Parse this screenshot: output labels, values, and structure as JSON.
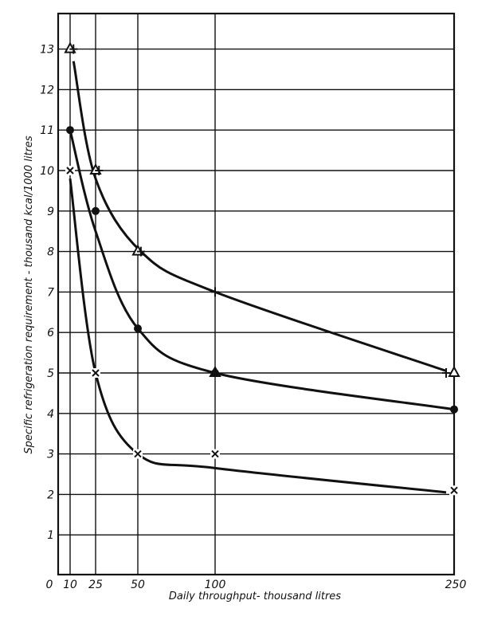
{
  "chart_data": {
    "type": "line",
    "title": "",
    "xlabel": "Daily throughput- thousand litres",
    "ylabel": "Specific refrigeration requirement - thousand kcal/1000 litres",
    "x_ticks": [
      "0",
      "10",
      "25",
      "50",
      "100",
      "250"
    ],
    "y_ticks": [
      "1",
      "2",
      "3",
      "4",
      "5",
      "6",
      "7",
      "8",
      "9",
      "10",
      "11",
      "12",
      "13"
    ],
    "ylim": [
      0,
      13.8
    ],
    "grid": true,
    "x_scale": "non-linear (custom positions)",
    "series": [
      {
        "name": "triangle",
        "marker": "triangle",
        "x": [
          10,
          25,
          50,
          100,
          250
        ],
        "values": [
          13,
          10,
          8,
          5,
          5
        ]
      },
      {
        "name": "plus",
        "marker": "plus",
        "x": [
          12,
          27,
          52,
          100,
          245
        ],
        "values": [
          13,
          10,
          8,
          7,
          5
        ]
      },
      {
        "name": "dot",
        "marker": "filled-circle",
        "x": [
          10,
          25,
          50,
          100,
          250
        ],
        "values": [
          11,
          9,
          6.1,
          5,
          4.1
        ]
      },
      {
        "name": "cross",
        "marker": "x",
        "x": [
          10,
          25,
          50,
          100,
          250
        ],
        "values": [
          10,
          5,
          3,
          3,
          2.1
        ]
      }
    ],
    "curves": [
      {
        "name": "upper curve",
        "approx": [
          [
            12,
            12.7
          ],
          [
            25,
            9.8
          ],
          [
            52,
            8
          ],
          [
            100,
            7
          ],
          [
            245,
            5.05
          ]
        ]
      },
      {
        "name": "middle curve",
        "approx": [
          [
            10,
            11
          ],
          [
            25,
            8.5
          ],
          [
            50,
            6.1
          ],
          [
            100,
            5
          ],
          [
            250,
            4.1
          ]
        ]
      },
      {
        "name": "lower curve",
        "approx": [
          [
            10,
            9.8
          ],
          [
            25,
            5
          ],
          [
            50,
            3
          ],
          [
            100,
            2.65
          ],
          [
            245,
            2.05
          ]
        ]
      }
    ]
  }
}
